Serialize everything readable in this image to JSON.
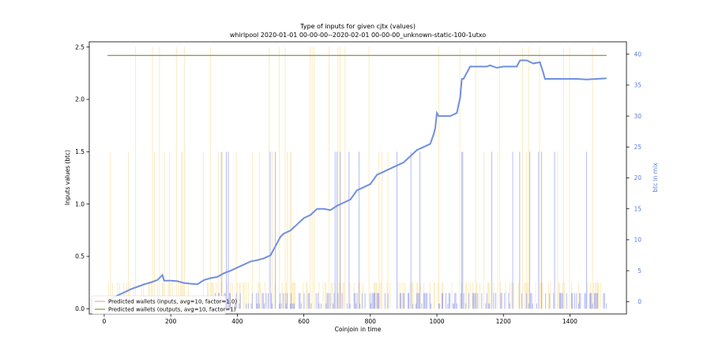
{
  "chart_data": {
    "type": "line",
    "title": "Type of inputs for given cjtx (values)",
    "subtitle": "whirlpool 2020-01-01 00-00-00--2020-02-01 00-00-00_unknown-static-100-1utxo",
    "xlabel": "Coinjoin in time",
    "ylabel": "Inputs values (btc)",
    "y2label": "btc in mix",
    "xlim": [
      -45,
      1570
    ],
    "ylim": [
      -0.05,
      2.55
    ],
    "y2lim": [
      -2,
      42
    ],
    "xticks": [
      0,
      200,
      400,
      600,
      800,
      1000,
      1200,
      1400
    ],
    "yticks": [
      0.0,
      0.5,
      1.0,
      1.5,
      2.0,
      2.5
    ],
    "y2ticks": [
      0,
      5,
      10,
      15,
      20,
      25,
      30,
      35,
      40
    ],
    "series": [
      {
        "name": "Predicted wallets (inputs, avg=10, factor=1.0)",
        "axis": "left",
        "color": "#f4a6a6",
        "x": [
          10,
          1510
        ],
        "values": [
          2.42,
          2.42
        ]
      },
      {
        "name": "Predicted wallets (outputs, avg=10, factor=1)",
        "axis": "left",
        "color": "#7a9a4a",
        "x": [
          10,
          1510
        ],
        "values": [
          2.42,
          2.42
        ]
      },
      {
        "name": "",
        "axis": "right",
        "color": "#6f8fe0",
        "x": [
          10,
          20,
          40,
          60,
          80,
          100,
          120,
          140,
          160,
          175,
          180,
          200,
          220,
          240,
          260,
          280,
          300,
          320,
          340,
          360,
          380,
          400,
          420,
          440,
          460,
          480,
          500,
          510,
          520,
          530,
          540,
          560,
          580,
          600,
          620,
          640,
          660,
          680,
          700,
          720,
          740,
          760,
          780,
          800,
          820,
          840,
          860,
          880,
          900,
          920,
          940,
          960,
          980,
          990,
          995,
          1000,
          1005,
          1040,
          1060,
          1070,
          1075,
          1080,
          1100,
          1150,
          1160,
          1180,
          1200,
          1240,
          1250,
          1270,
          1290,
          1310,
          1320,
          1325,
          1340,
          1400,
          1420,
          1450,
          1480,
          1510
        ],
        "values": [
          0,
          0.4,
          1.0,
          1.5,
          2.0,
          2.4,
          2.8,
          3.1,
          3.5,
          4.3,
          3.4,
          3.4,
          3.3,
          3.0,
          2.9,
          2.8,
          3.5,
          3.8,
          4.0,
          4.6,
          5.0,
          5.5,
          6.0,
          6.5,
          6.7,
          7.0,
          7.5,
          8.5,
          9.5,
          10.5,
          11.0,
          11.5,
          12.5,
          13.5,
          14.0,
          15.0,
          15.0,
          14.8,
          15.5,
          16.0,
          16.5,
          18.0,
          18.5,
          19.0,
          20.5,
          21.0,
          21.5,
          22.0,
          22.5,
          23.5,
          24.5,
          25.0,
          25.5,
          27.0,
          28.0,
          30.5,
          30.0,
          30.0,
          30.5,
          33.0,
          36.0,
          36.0,
          38.0,
          38.0,
          38.2,
          37.8,
          38.0,
          38.0,
          39.0,
          39.0,
          38.5,
          38.7,
          37.0,
          36.0,
          36.0,
          36.0,
          36.0,
          35.9,
          36.0,
          36.1
        ]
      }
    ],
    "legend_position": "lower-left",
    "grid": false
  }
}
